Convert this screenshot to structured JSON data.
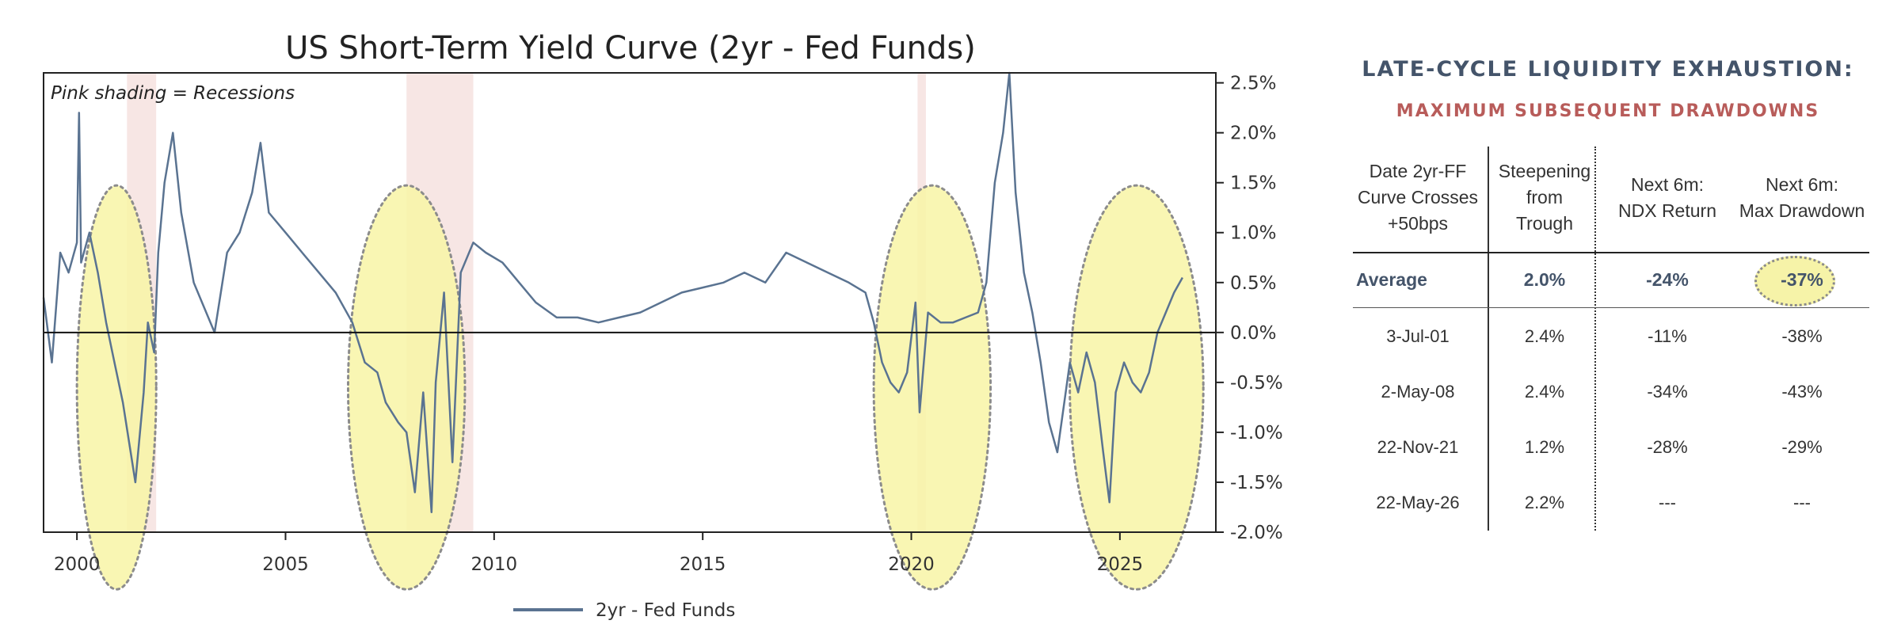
{
  "chart_data": {
    "type": "line",
    "title": "US Short-Term Yield Curve (2yr - Fed Funds)",
    "annotation": "Pink shading = Recessions",
    "xlabel": "",
    "ylabel": "",
    "xlim": [
      1999.2,
      2027.3
    ],
    "ylim": [
      -2.0,
      2.6
    ],
    "x_ticks": [
      2000,
      2005,
      2010,
      2015,
      2020,
      2025
    ],
    "x_tick_labels": [
      "2000",
      "2005",
      "2010",
      "2015",
      "2020",
      "2025"
    ],
    "y_ticks": [
      2.5,
      2.0,
      1.5,
      1.0,
      0.5,
      0.0,
      -0.5,
      -1.0,
      -1.5,
      -2.0
    ],
    "y_tick_labels": [
      "2.5%",
      "2.0%",
      "1.5%",
      "1.0%",
      "0.5%",
      "0.0%",
      "-0.5%",
      "-1.0%",
      "-1.5%",
      "-2.0%"
    ],
    "y_axis_side": "right",
    "zero_line": true,
    "grid": false,
    "legend": {
      "placement": "bottom-center"
    },
    "recessions": [
      [
        2001.2,
        2001.9
      ],
      [
        2007.9,
        2009.5
      ],
      [
        2020.15,
        2020.35
      ]
    ],
    "highlight_periods": [
      [
        2000.0,
        2001.9
      ],
      [
        2006.5,
        2009.3
      ],
      [
        2019.1,
        2021.9
      ],
      [
        2023.8,
        2027.0
      ]
    ],
    "series": [
      {
        "name": "2yr - Fed Funds",
        "color": "#5a7391",
        "x": [
          1999.2,
          1999.4,
          1999.6,
          1999.8,
          2000.0,
          2000.05,
          2000.1,
          2000.3,
          2000.5,
          2000.7,
          2000.9,
          2001.0,
          2001.1,
          2001.25,
          2001.4,
          2001.6,
          2001.7,
          2001.85,
          2001.95,
          2002.1,
          2002.3,
          2002.5,
          2002.8,
          2003.0,
          2003.3,
          2003.6,
          2003.9,
          2004.2,
          2004.4,
          2004.6,
          2005.0,
          2005.4,
          2005.8,
          2006.2,
          2006.6,
          2006.9,
          2007.2,
          2007.4,
          2007.7,
          2007.9,
          2008.1,
          2008.3,
          2008.5,
          2008.6,
          2008.8,
          2009.0,
          2009.2,
          2009.5,
          2009.8,
          2010.2,
          2010.6,
          2011.0,
          2011.5,
          2012.0,
          2012.5,
          2013.0,
          2013.5,
          2014.0,
          2014.5,
          2015.0,
          2015.5,
          2016.0,
          2016.5,
          2017.0,
          2017.5,
          2018.0,
          2018.5,
          2018.9,
          2019.1,
          2019.3,
          2019.5,
          2019.7,
          2019.9,
          2020.1,
          2020.2,
          2020.4,
          2020.7,
          2021.0,
          2021.3,
          2021.6,
          2021.8,
          2022.0,
          2022.2,
          2022.35,
          2022.5,
          2022.7,
          2022.9,
          2023.1,
          2023.3,
          2023.5,
          2023.8,
          2024.0,
          2024.2,
          2024.4,
          2024.6,
          2024.75,
          2024.9,
          2025.1,
          2025.3,
          2025.5,
          2025.7,
          2025.9,
          2026.1,
          2026.3,
          2026.5
        ],
        "values": [
          0.35,
          -0.3,
          0.8,
          0.6,
          0.9,
          2.2,
          0.7,
          1.0,
          0.6,
          0.1,
          -0.3,
          -0.5,
          -0.7,
          -1.1,
          -1.5,
          -0.6,
          0.1,
          -0.2,
          0.8,
          1.5,
          2.0,
          1.2,
          0.5,
          0.3,
          0.0,
          0.8,
          1.0,
          1.4,
          1.9,
          1.2,
          1.0,
          0.8,
          0.6,
          0.4,
          0.1,
          -0.3,
          -0.4,
          -0.7,
          -0.9,
          -1.0,
          -1.6,
          -0.6,
          -1.8,
          -0.5,
          0.4,
          -1.3,
          0.6,
          0.9,
          0.8,
          0.7,
          0.5,
          0.3,
          0.15,
          0.15,
          0.1,
          0.15,
          0.2,
          0.3,
          0.4,
          0.45,
          0.5,
          0.6,
          0.5,
          0.8,
          0.7,
          0.6,
          0.5,
          0.4,
          0.1,
          -0.3,
          -0.5,
          -0.6,
          -0.4,
          0.3,
          -0.8,
          0.2,
          0.1,
          0.1,
          0.15,
          0.2,
          0.5,
          1.5,
          2.0,
          2.6,
          1.4,
          0.6,
          0.2,
          -0.3,
          -0.9,
          -1.2,
          -0.3,
          -0.6,
          -0.2,
          -0.5,
          -1.2,
          -1.7,
          -0.6,
          -0.3,
          -0.5,
          -0.6,
          -0.4,
          0.0,
          0.2,
          0.4,
          0.55
        ]
      }
    ]
  },
  "table": {
    "title": "LATE-CYCLE LIQUIDITY EXHAUSTION:",
    "subtitle": "MAXIMUM SUBSEQUENT DRAWDOWNS",
    "title_color": "#44546a",
    "subtitle_color": "#b85c5a",
    "columns": [
      "Date 2yr-FF\nCurve Crosses\n+50bps",
      "Steepening\nfrom\nTrough",
      "Next 6m:\nNDX Return",
      "Next 6m:\nMax Drawdown"
    ],
    "average": {
      "label": "Average",
      "steepening": "2.0%",
      "ndx_return": "-24%",
      "max_drawdown": "-37%"
    },
    "rows": [
      {
        "date": "3-Jul-01",
        "steepening": "2.4%",
        "ndx_return": "-11%",
        "max_drawdown": "-38%"
      },
      {
        "date": "2-May-08",
        "steepening": "2.4%",
        "ndx_return": "-34%",
        "max_drawdown": "-43%"
      },
      {
        "date": "22-Nov-21",
        "steepening": "1.2%",
        "ndx_return": "-28%",
        "max_drawdown": "-29%"
      },
      {
        "date": "22-May-26",
        "steepening": "2.2%",
        "ndx_return": "---",
        "max_drawdown": "---"
      }
    ]
  }
}
